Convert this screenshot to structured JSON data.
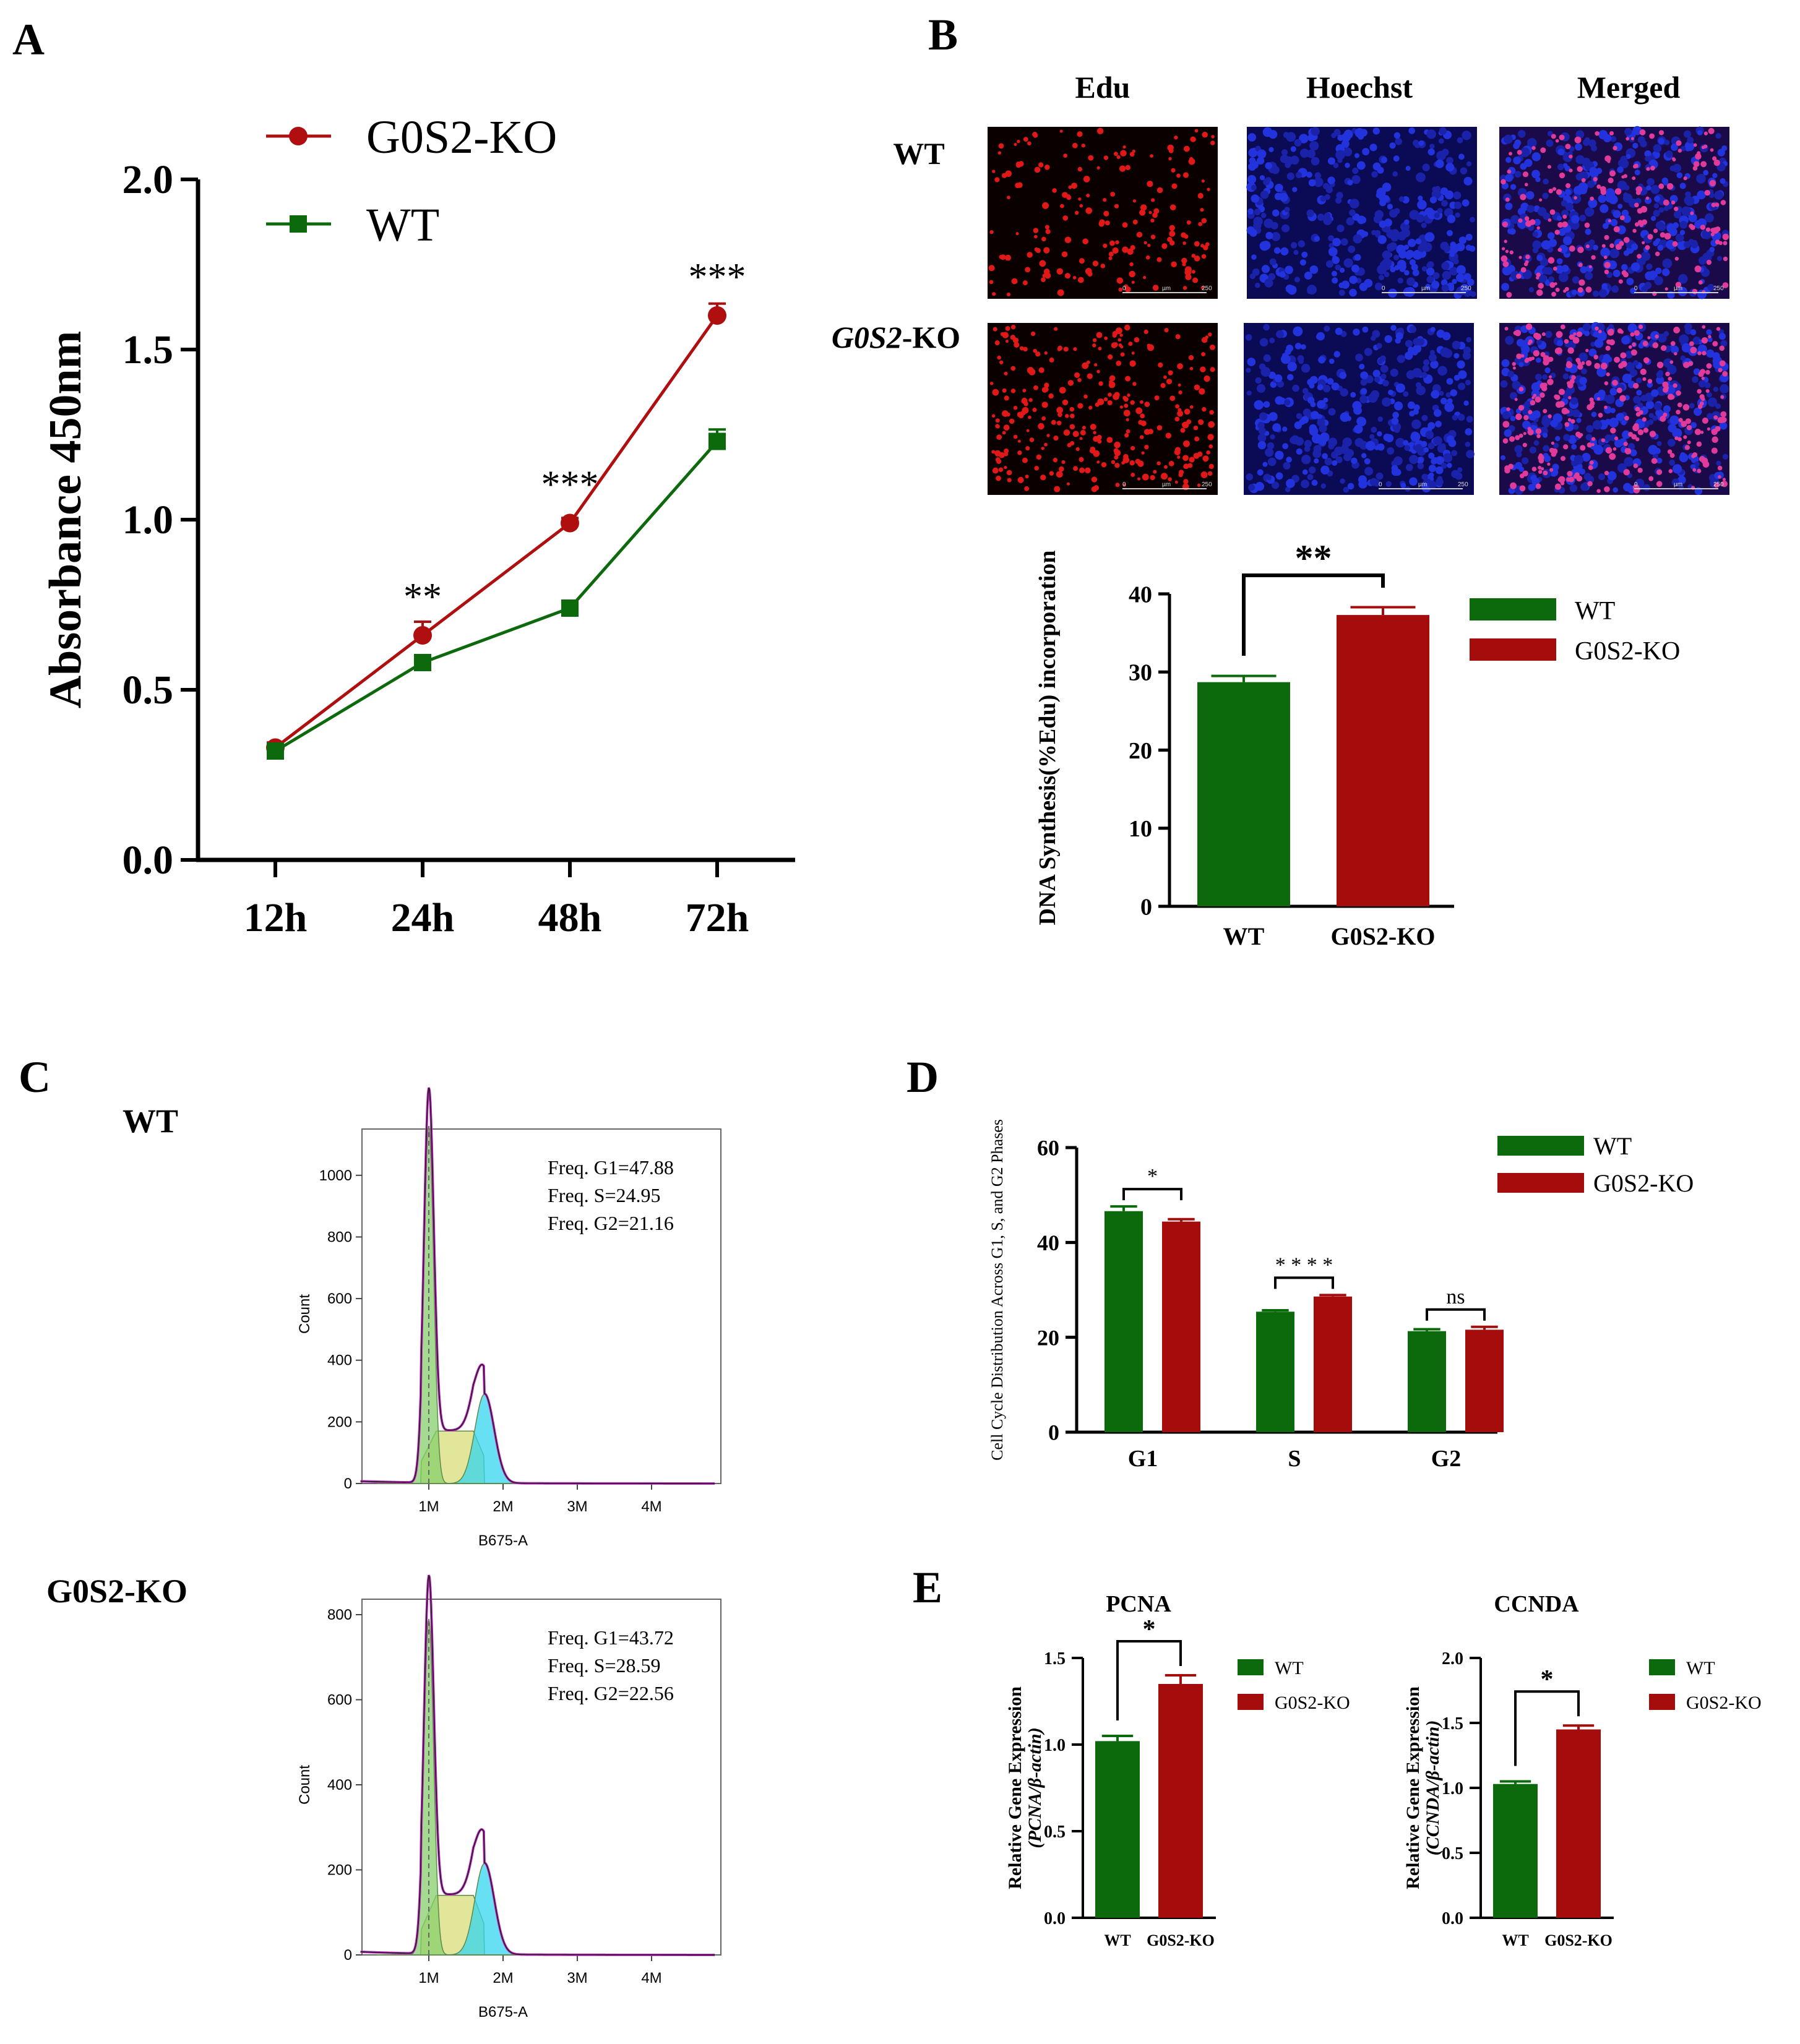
{
  "colors": {
    "red": "#b00f0f",
    "green": "#0c6a0c",
    "darkred": "#a50d0d",
    "cyan": "#33d6ee",
    "yellow": "#d8dd7a",
    "lightgreen": "#86cf6b",
    "magenta": "#d62fd6"
  },
  "panels": {
    "A": {
      "letter": "A"
    },
    "B": {
      "letter": "B",
      "columns": [
        "Edu",
        "Hoechst",
        "Merged"
      ],
      "rows": [
        "WT",
        "G0S2-KO"
      ],
      "row_italic_part": "G0S2",
      "row_tail": "-KO",
      "scale_ticks": [
        "0",
        "µm",
        "250"
      ]
    },
    "C": {
      "letter": "C"
    },
    "D": {
      "letter": "D"
    },
    "E": {
      "letter": "E"
    }
  },
  "chart_data": [
    {
      "id": "A",
      "type": "line",
      "categories": [
        "12h",
        "24h",
        "48h",
        "72h"
      ],
      "ylabel": "Absorbance 450nm",
      "ylim": [
        0,
        2.0
      ],
      "yticks": [
        "0.0",
        "0.5",
        "1.0",
        "1.5",
        "2.0"
      ],
      "legend_position": "top-left",
      "series": [
        {
          "name": "G0S2-KO",
          "marker": "circle",
          "values": [
            0.33,
            0.66,
            0.99,
            1.6
          ],
          "errors": [
            0.015,
            0.04,
            0.015,
            0.035
          ]
        },
        {
          "name": "WT",
          "marker": "square",
          "values": [
            0.32,
            0.58,
            0.74,
            1.23
          ],
          "errors": [
            0.015,
            0.02,
            0.015,
            0.035
          ]
        }
      ],
      "annotations": [
        "",
        "**",
        "***",
        "***"
      ]
    },
    {
      "id": "B",
      "type": "bar",
      "categories": [
        "WT",
        "G0S2-KO"
      ],
      "values": [
        28.7,
        37.3
      ],
      "errors": [
        0.8,
        1.0
      ],
      "ylabel": "DNA Synthesis(%Edu) incorporation",
      "ylim": [
        0,
        40
      ],
      "yticks": [
        "0",
        "10",
        "20",
        "30",
        "40"
      ],
      "legend": [
        "WT",
        "G0S2-KO"
      ],
      "legend_position": "right",
      "significance": "**"
    },
    {
      "id": "C-WT",
      "type": "area",
      "title": "WT",
      "xlabel": "B675-A",
      "ylabel": "Count",
      "ylim": [
        0,
        1100
      ],
      "xticks": [
        "1M",
        "2M",
        "3M",
        "4M"
      ],
      "yticks": [
        "0",
        "200",
        "400",
        "600",
        "800",
        "1000"
      ],
      "freq_lines": [
        "Freq. G1=47.88",
        "Freq. S=24.95",
        "Freq. G2=21.16"
      ],
      "peaks": {
        "g1_height": 1160,
        "s_height": 170,
        "g2_height": 290
      }
    },
    {
      "id": "C-KO",
      "type": "area",
      "title": "G0S2-KO",
      "xlabel": "B675-A",
      "ylabel": "Count",
      "ylim": [
        0,
        800
      ],
      "xticks": [
        "1M",
        "2M",
        "3M",
        "4M"
      ],
      "yticks": [
        "0",
        "200",
        "400",
        "600",
        "800"
      ],
      "freq_lines": [
        "Freq. G1=43.72",
        "Freq. S=28.59",
        "Freq. G2=22.56"
      ],
      "peaks": {
        "g1_height": 790,
        "s_height": 140,
        "g2_height": 215
      }
    },
    {
      "id": "D",
      "type": "bar",
      "categories": [
        "G1",
        "S",
        "G2"
      ],
      "ylabel": "Cell Cycle Distribution Across G1, S, and G2 Phases",
      "ylim": [
        0,
        60
      ],
      "yticks": [
        "0",
        "20",
        "40",
        "60"
      ],
      "series": [
        {
          "name": "WT",
          "values": [
            46.6,
            25.4,
            21.3
          ],
          "errors": [
            1.0,
            0.3,
            0.4
          ]
        },
        {
          "name": "G0S2-KO",
          "values": [
            44.4,
            28.6,
            21.6
          ],
          "errors": [
            0.5,
            0.3,
            0.6
          ]
        }
      ],
      "significance": [
        "*",
        "* * * *",
        "ns"
      ],
      "legend_position": "top-right"
    },
    {
      "id": "E-PCNA",
      "type": "bar",
      "title": "PCNA",
      "categories": [
        "WT",
        "G0S2-KO"
      ],
      "values": [
        1.02,
        1.35
      ],
      "errors": [
        0.03,
        0.05
      ],
      "ylabel_line1": "Relative Gene Expression",
      "ylabel_line2": "(PCNA/β-actin)",
      "ylim": [
        0,
        1.5
      ],
      "yticks": [
        "0.0",
        "0.5",
        "1.0",
        "1.5"
      ],
      "legend": [
        "WT",
        "G0S2-KO"
      ],
      "significance": "*"
    },
    {
      "id": "E-CCNDA",
      "type": "bar",
      "title": "CCNDA",
      "categories": [
        "WT",
        "G0S2-KO"
      ],
      "values": [
        1.03,
        1.45
      ],
      "errors": [
        0.02,
        0.03
      ],
      "ylabel_line1": "Relative Gene Expression",
      "ylabel_line2": "(CCNDA/β-actin)",
      "ylim": [
        0,
        2.0
      ],
      "yticks": [
        "0.0",
        "0.5",
        "1.0",
        "1.5",
        "2.0"
      ],
      "legend": [
        "WT",
        "G0S2-KO"
      ],
      "significance": "*"
    }
  ]
}
